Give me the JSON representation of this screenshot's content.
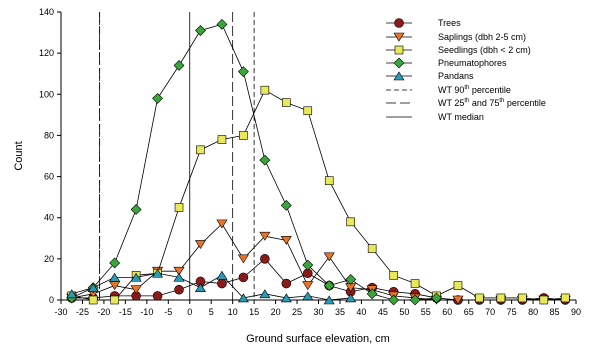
{
  "chart_data": {
    "type": "line",
    "title": "",
    "xlabel": "Ground surface elevation, cm",
    "ylabel": "Count",
    "xlim": [
      -30,
      90
    ],
    "ylim": [
      0,
      140
    ],
    "xticks": [
      -30,
      -25,
      -20,
      -15,
      -10,
      -5,
      0,
      5,
      10,
      15,
      20,
      25,
      30,
      35,
      40,
      45,
      50,
      55,
      60,
      65,
      70,
      75,
      80,
      85,
      90
    ],
    "yticks": [
      0,
      20,
      40,
      60,
      80,
      100,
      120,
      140
    ],
    "legend_position": "top-right",
    "series": [
      {
        "name": "Trees",
        "marker": "circle",
        "color": "#8b1a1a",
        "x": [
          -27.5,
          -22.5,
          -17.5,
          -12.5,
          -7.5,
          -2.5,
          2.5,
          7.5,
          12.5,
          17.5,
          22.5,
          27.5,
          32.5,
          37.5,
          42.5,
          47.5,
          52.5,
          57.5,
          62.5,
          67.5,
          72.5,
          77.5,
          82.5,
          87.5
        ],
        "y": [
          1,
          1,
          2,
          2,
          2,
          5,
          9,
          8,
          11,
          20,
          8,
          13,
          7,
          4,
          6,
          4,
          3,
          1,
          0,
          0,
          0,
          0,
          1,
          0
        ]
      },
      {
        "name": "Saplings (dbh 2-5 cm)",
        "marker": "triangle-down",
        "color": "#e8742a",
        "x": [
          -27.5,
          -22.5,
          -17.5,
          -12.5,
          -7.5,
          -2.5,
          2.5,
          7.5,
          12.5,
          17.5,
          22.5,
          27.5,
          32.5,
          37.5,
          42.5,
          47.5,
          52.5,
          57.5,
          62.5,
          67.5,
          72.5,
          77.5,
          82.5,
          87.5
        ],
        "y": [
          1,
          3,
          7,
          5,
          14,
          14,
          27,
          37,
          20,
          31,
          29,
          7,
          21,
          6,
          5,
          2,
          1,
          0,
          0,
          0,
          0,
          0,
          0,
          0
        ]
      },
      {
        "name": "Seedlings (dbh < 2 cm)",
        "marker": "square",
        "color": "#e8e85a",
        "x": [
          -27.5,
          -22.5,
          -17.5,
          -12.5,
          -7.5,
          -2.5,
          2.5,
          7.5,
          12.5,
          17.5,
          22.5,
          27.5,
          32.5,
          37.5,
          42.5,
          47.5,
          52.5,
          57.5,
          62.5,
          67.5,
          72.5,
          77.5,
          82.5,
          87.5
        ],
        "y": [
          2,
          0,
          0,
          12,
          13,
          45,
          73,
          78,
          80,
          102,
          96,
          92,
          58,
          38,
          25,
          12,
          8,
          2,
          7,
          1,
          1,
          1,
          0,
          1
        ]
      },
      {
        "name": "Pneumatophores",
        "marker": "diamond",
        "color": "#3aa63a",
        "x": [
          -27.5,
          -22.5,
          -17.5,
          -12.5,
          -7.5,
          -2.5,
          2.5,
          7.5,
          12.5,
          17.5,
          22.5,
          27.5,
          32.5,
          37.5,
          42.5,
          47.5,
          52.5,
          57.5
        ],
        "y": [
          1,
          6,
          18,
          44,
          98,
          114,
          131,
          134,
          111,
          68,
          46,
          17,
          7,
          10,
          3,
          0,
          0,
          1
        ]
      },
      {
        "name": "Pandans",
        "marker": "triangle-up",
        "color": "#2a9ab5",
        "x": [
          -27.5,
          -22.5,
          -17.5,
          -12.5,
          -7.5,
          -2.5,
          2.5,
          7.5,
          12.5,
          17.5,
          22.5,
          27.5,
          32.5,
          37.5
        ],
        "y": [
          3,
          6,
          11,
          11,
          13,
          11,
          6,
          12,
          1,
          3,
          1,
          2,
          0,
          1
        ]
      }
    ],
    "reference_lines": [
      {
        "name": "WT 90th percentile",
        "style": "short-dash",
        "x": [
          -21,
          15
        ]
      },
      {
        "name": "WT 25th and 75th percentile",
        "style": "long-dash",
        "x": [
          -21,
          10
        ]
      },
      {
        "name": "WT median",
        "style": "solid",
        "x": [
          0
        ]
      }
    ],
    "legend": {
      "trees": "Trees",
      "saplings": "Saplings (dbh 2-5 cm)",
      "seedlings": "Seedlings (dbh < 2 cm)",
      "pneumatophores": "Pneumatophores",
      "pandans": "Pandans",
      "wt90_main": "WT 90",
      "wt90_sup": "th",
      "wt90_tail": " percentile",
      "wt2575_main": "WT 25",
      "wt2575_sup": "th",
      "wt2575_mid": " and 75",
      "wt2575_sup2": "th",
      "wt2575_tail": " percentile",
      "wtmedian": "WT median"
    }
  }
}
